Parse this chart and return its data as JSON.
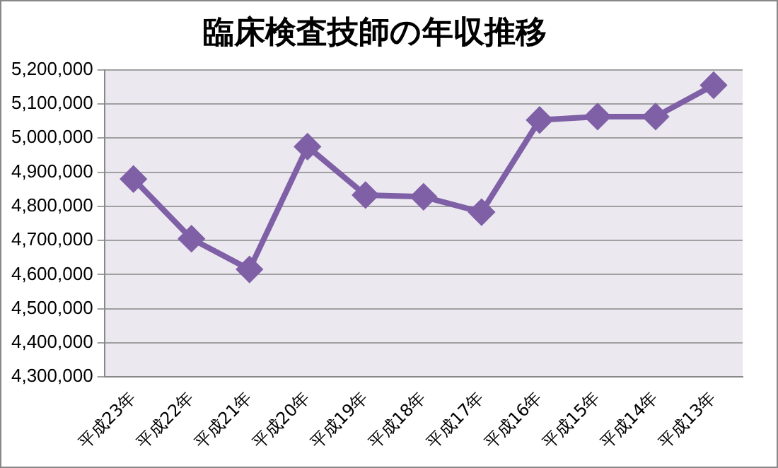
{
  "chart_data": {
    "type": "line",
    "title": "臨床検査技師の年収推移",
    "categories": [
      "平成23年",
      "平成22年",
      "平成21年",
      "平成20年",
      "平成19年",
      "平成18年",
      "平成17年",
      "平成16年",
      "平成15年",
      "平成14年",
      "平成13年"
    ],
    "series": [
      {
        "color": "#7f60a6",
        "values": [
          4880000,
          4705000,
          4615000,
          4975000,
          4833000,
          4828000,
          4783000,
          5053000,
          5063000,
          5063000,
          5155000
        ]
      }
    ],
    "ylim": [
      4300000,
      5200000
    ],
    "yticks": [
      {
        "value": 4300000,
        "label": "4,300,000"
      },
      {
        "value": 4400000,
        "label": "4,400,000"
      },
      {
        "value": 4500000,
        "label": "4,500,000"
      },
      {
        "value": 4600000,
        "label": "4,600,000"
      },
      {
        "value": 4700000,
        "label": "4,700,000"
      },
      {
        "value": 4800000,
        "label": "4,800,000"
      },
      {
        "value": 4900000,
        "label": "4,900,000"
      },
      {
        "value": 5000000,
        "label": "5,000,000"
      },
      {
        "value": 5100000,
        "label": "5,100,000"
      },
      {
        "value": 5200000,
        "label": "5,200,000"
      }
    ],
    "grid": "y",
    "legend": false,
    "marker": "diamond",
    "line_style": "solid"
  }
}
